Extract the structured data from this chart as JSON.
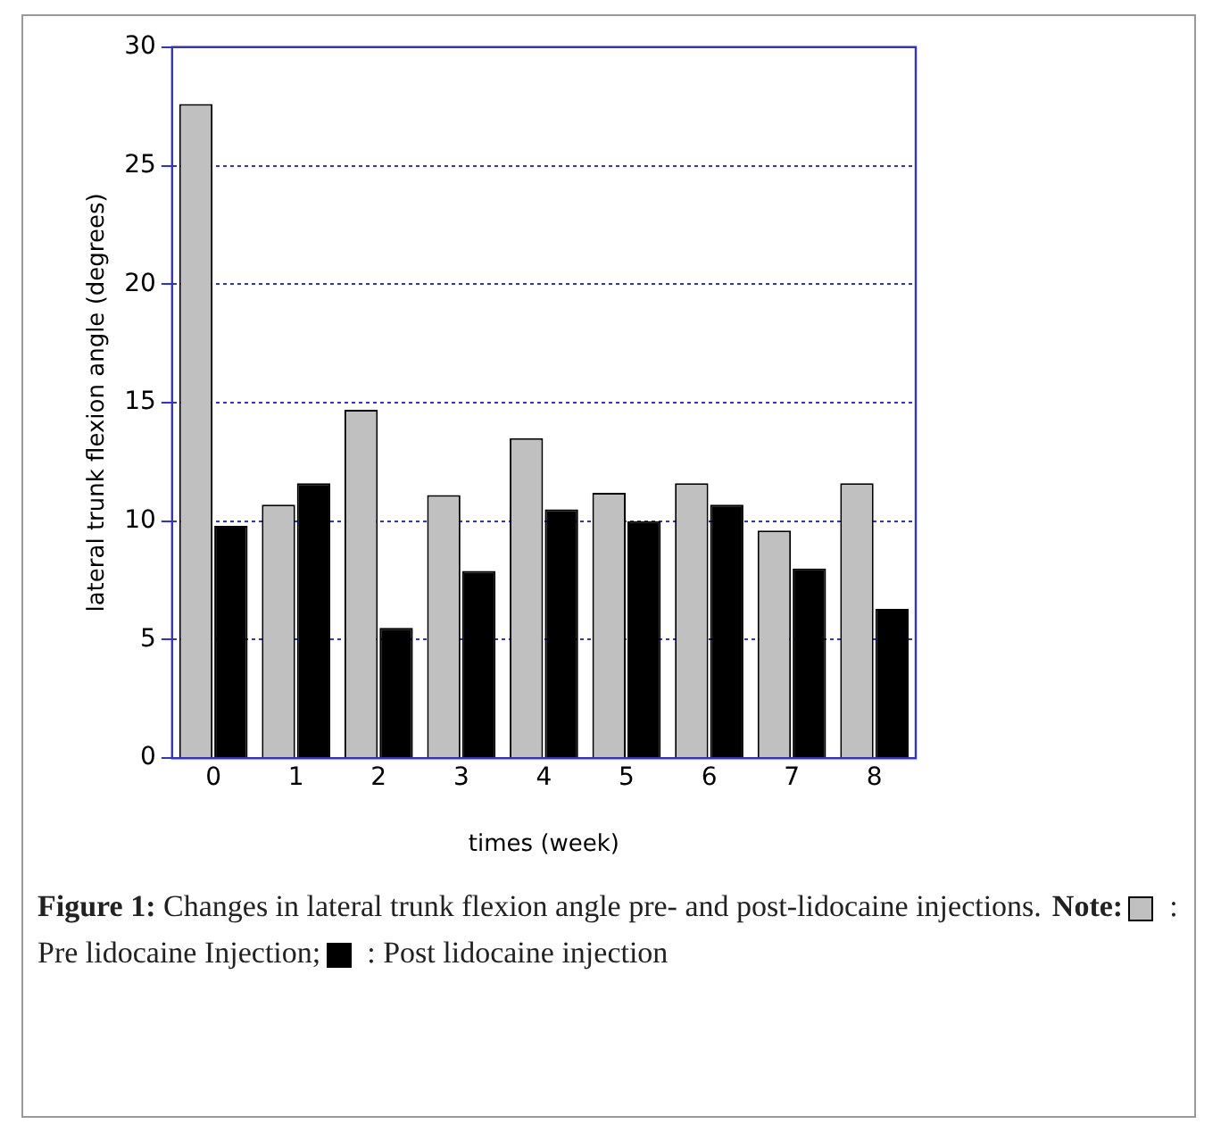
{
  "chart_data": {
    "type": "bar",
    "xlabel": "times (week)",
    "ylabel": "lateral trunk flexion angle (degrees)",
    "categories": [
      "0",
      "1",
      "2",
      "3",
      "4",
      "5",
      "6",
      "7",
      "8"
    ],
    "series": [
      {
        "color": "#c0c0c0",
        "values": [
          27.6,
          10.7,
          14.7,
          11.1,
          13.5,
          11.2,
          11.6,
          9.6,
          11.6
        ]
      },
      {
        "color": "#000000",
        "values": [
          9.8,
          11.6,
          5.5,
          7.9,
          10.5,
          10.0,
          10.7,
          8.0,
          6.3
        ]
      }
    ],
    "ylim": [
      0,
      30
    ],
    "yticks": [
      0,
      5,
      10,
      15,
      20,
      25,
      30
    ],
    "grid": "y",
    "annotations": [
      "Figure 1: Changes in lateral trunk flexion angle pre- and post-lidocaine injections.",
      "Note:",
      ": Pre lidocaine Injection;",
      ": Post lidocaine injection"
    ]
  }
}
